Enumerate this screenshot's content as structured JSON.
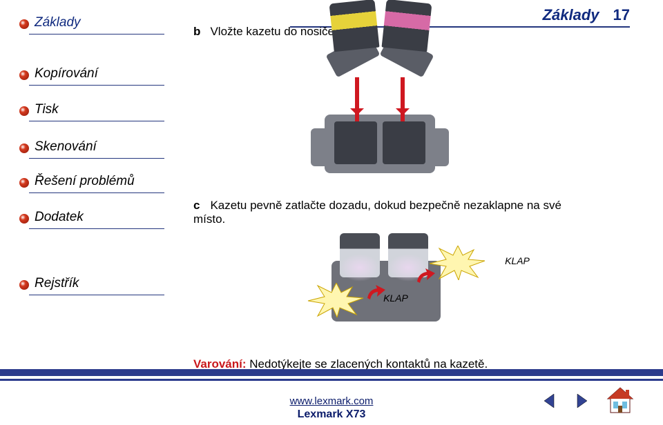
{
  "header": {
    "title": "Základy",
    "page": "17"
  },
  "sidebar": {
    "items": [
      {
        "label": "Základy",
        "blue": true,
        "interactable": true
      },
      {
        "label": "Kopírování",
        "blue": false,
        "interactable": true
      },
      {
        "label": "Tisk",
        "blue": false,
        "interactable": true
      },
      {
        "label": "Skenování",
        "blue": false,
        "interactable": true
      },
      {
        "label": "Řešení problémů",
        "blue": false,
        "interactable": true
      },
      {
        "label": "Dodatek",
        "blue": false,
        "interactable": true
      },
      {
        "label": "Rejstřík",
        "blue": false,
        "interactable": true
      }
    ]
  },
  "content": {
    "step_b": {
      "letter": "b",
      "text": "Vložte kazetu do nosiče."
    },
    "step_c": {
      "letter": "c",
      "text": "Kazetu pevně zatlačte dozadu, dokud bezpečně nezaklapne na své místo."
    },
    "klap1": "KLAP",
    "klap2": "KLAP",
    "warning": {
      "label": "Varování:",
      "text": " Nedotýkejte se zlacených kontaktů na kazetě."
    }
  },
  "footer": {
    "url": "www.lexmark.com",
    "product": "Lexmark X73"
  },
  "colors": {
    "brand_blue": "#2b3a8c",
    "link_blue": "#0a1b6a",
    "red": "#cf1820",
    "warning_red": "#c9181d",
    "bullet_red": "#d53a1e",
    "grey_metal": "#7d8089"
  }
}
